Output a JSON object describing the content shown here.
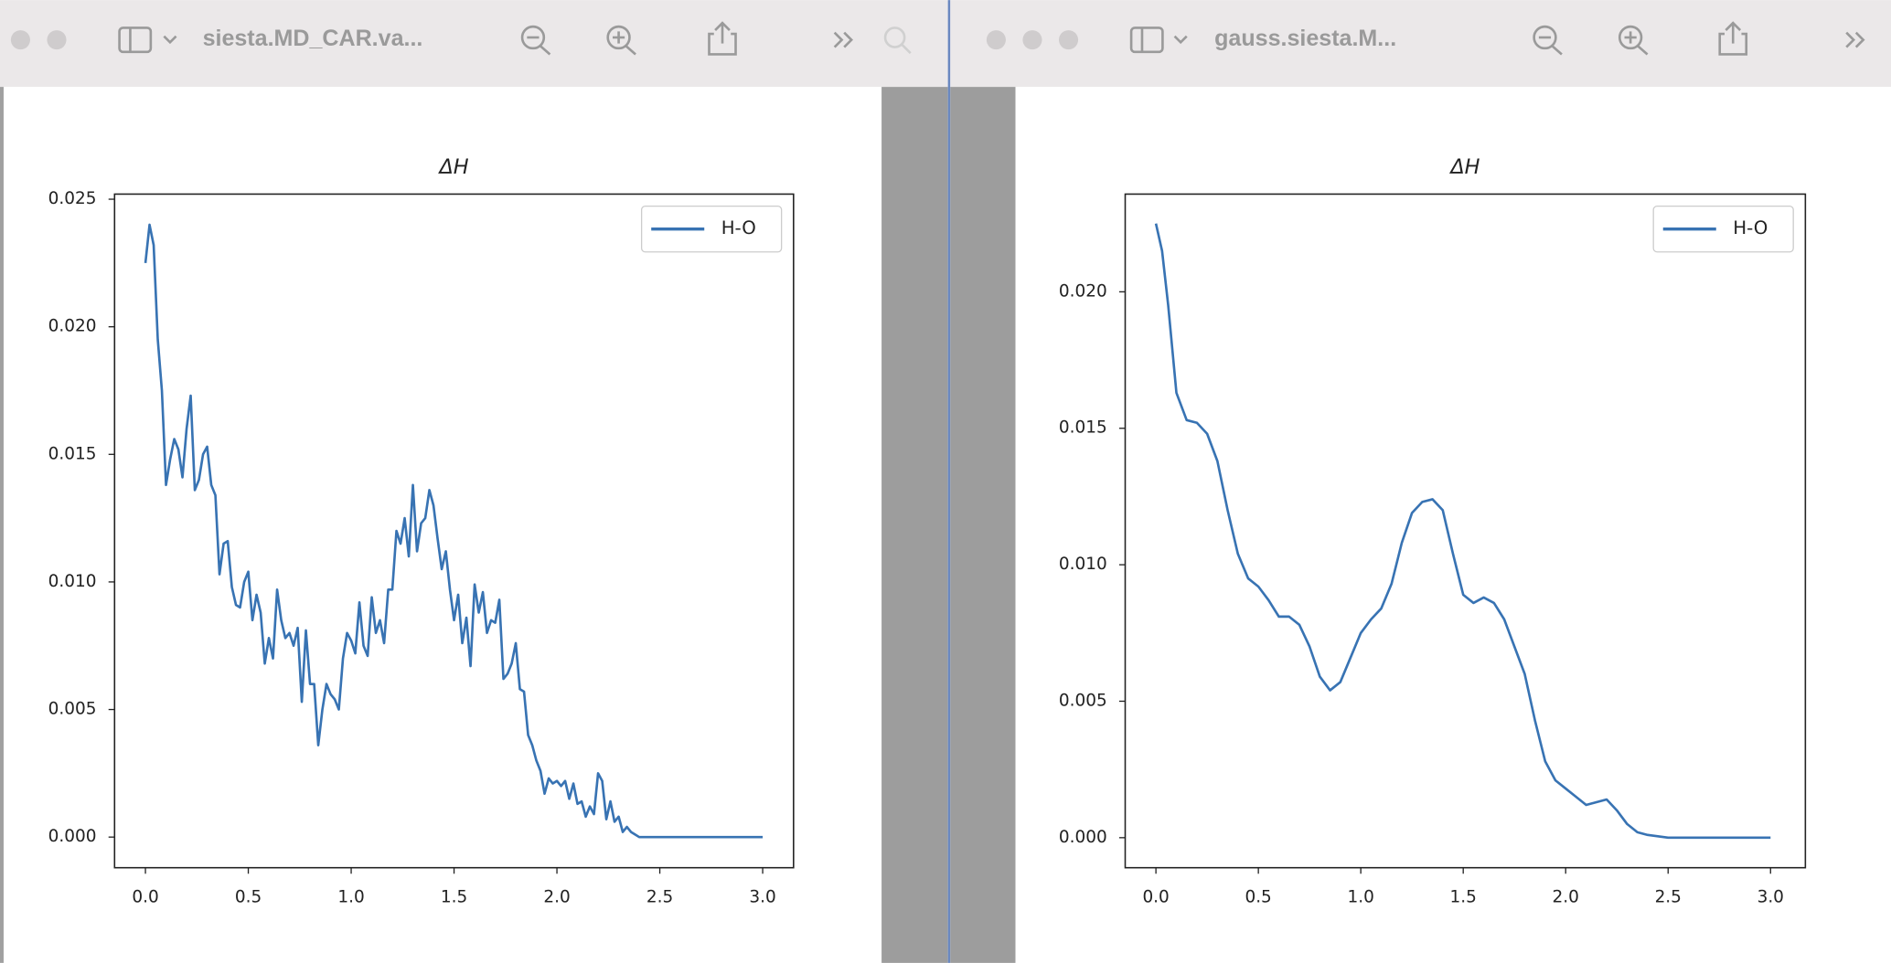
{
  "windows": [
    {
      "title": "siesta.MD_CAR.va..."
    },
    {
      "title": "gauss.siesta.M..."
    }
  ],
  "chart_data": [
    {
      "type": "line",
      "title": "ΔH",
      "x": [
        0.0,
        0.02,
        0.04,
        0.06,
        0.08,
        0.1,
        0.12,
        0.14,
        0.16,
        0.18,
        0.2,
        0.22,
        0.24,
        0.26,
        0.28,
        0.3,
        0.32,
        0.34,
        0.36,
        0.38,
        0.4,
        0.42,
        0.44,
        0.46,
        0.48,
        0.5,
        0.52,
        0.54,
        0.56,
        0.58,
        0.6,
        0.62,
        0.64,
        0.66,
        0.68,
        0.7,
        0.72,
        0.74,
        0.76,
        0.78,
        0.8,
        0.82,
        0.84,
        0.86,
        0.88,
        0.9,
        0.92,
        0.94,
        0.96,
        0.98,
        1.0,
        1.02,
        1.04,
        1.06,
        1.08,
        1.1,
        1.12,
        1.14,
        1.16,
        1.18,
        1.2,
        1.22,
        1.24,
        1.26,
        1.28,
        1.3,
        1.32,
        1.34,
        1.36,
        1.38,
        1.4,
        1.42,
        1.44,
        1.46,
        1.48,
        1.5,
        1.52,
        1.54,
        1.56,
        1.58,
        1.6,
        1.62,
        1.64,
        1.66,
        1.68,
        1.7,
        1.72,
        1.74,
        1.76,
        1.78,
        1.8,
        1.82,
        1.84,
        1.86,
        1.88,
        1.9,
        1.92,
        1.94,
        1.96,
        1.98,
        2.0,
        2.02,
        2.04,
        2.06,
        2.08,
        2.1,
        2.12,
        2.14,
        2.16,
        2.18,
        2.2,
        2.22,
        2.24,
        2.26,
        2.28,
        2.3,
        2.32,
        2.34,
        2.36,
        2.38,
        2.4,
        2.5,
        3.0
      ],
      "series": [
        {
          "name": "H-O",
          "color": "#3873b3",
          "values": [
            0.0225,
            0.024,
            0.0232,
            0.0195,
            0.0175,
            0.0138,
            0.0148,
            0.0156,
            0.0152,
            0.0141,
            0.016,
            0.0173,
            0.0136,
            0.014,
            0.015,
            0.0153,
            0.0138,
            0.0134,
            0.0103,
            0.0115,
            0.0116,
            0.0098,
            0.0091,
            0.009,
            0.01,
            0.0104,
            0.0085,
            0.0095,
            0.0088,
            0.0068,
            0.0078,
            0.007,
            0.0097,
            0.0085,
            0.0078,
            0.008,
            0.0075,
            0.0082,
            0.0053,
            0.0081,
            0.006,
            0.006,
            0.0036,
            0.005,
            0.006,
            0.0056,
            0.0054,
            0.005,
            0.007,
            0.008,
            0.0077,
            0.0072,
            0.0092,
            0.0075,
            0.0071,
            0.0094,
            0.008,
            0.0085,
            0.0076,
            0.0097,
            0.0097,
            0.012,
            0.0115,
            0.0125,
            0.011,
            0.0138,
            0.0112,
            0.0123,
            0.0125,
            0.0136,
            0.013,
            0.0117,
            0.0105,
            0.0112,
            0.0097,
            0.0085,
            0.0095,
            0.0076,
            0.0086,
            0.0067,
            0.0099,
            0.0088,
            0.0096,
            0.008,
            0.0085,
            0.0084,
            0.0093,
            0.0062,
            0.0064,
            0.0068,
            0.0076,
            0.0058,
            0.0057,
            0.004,
            0.0036,
            0.003,
            0.0026,
            0.0017,
            0.0023,
            0.0021,
            0.0022,
            0.002,
            0.0022,
            0.0015,
            0.0021,
            0.0013,
            0.0014,
            0.0008,
            0.0012,
            0.0009,
            0.0025,
            0.0022,
            0.0007,
            0.0014,
            0.0006,
            0.0008,
            0.0002,
            0.0004,
            0.0002,
            0.0001,
            0.0,
            0.0,
            0.0
          ]
        }
      ],
      "xlim": [
        -0.15,
        3.15
      ],
      "ylim": [
        -0.0012,
        0.0252
      ],
      "xticks": [
        {
          "value": 0,
          "label": "0.0"
        },
        {
          "value": 0.5,
          "label": "0.5"
        },
        {
          "value": 1,
          "label": "1.0"
        },
        {
          "value": 1.5,
          "label": "1.5"
        },
        {
          "value": 2,
          "label": "2.0"
        },
        {
          "value": 2.5,
          "label": "2.5"
        },
        {
          "value": 3,
          "label": "3.0"
        }
      ],
      "yticks": [
        {
          "value": 0,
          "label": "0.000"
        },
        {
          "value": 0.005,
          "label": "0.005"
        },
        {
          "value": 0.01,
          "label": "0.010"
        },
        {
          "value": 0.015,
          "label": "0.015"
        },
        {
          "value": 0.02,
          "label": "0.020"
        },
        {
          "value": 0.025,
          "label": "0.025"
        }
      ],
      "legend": "upper right"
    },
    {
      "type": "line",
      "title": "ΔH",
      "x": [
        0.0,
        0.03,
        0.06,
        0.1,
        0.15,
        0.2,
        0.25,
        0.3,
        0.35,
        0.4,
        0.45,
        0.5,
        0.55,
        0.6,
        0.65,
        0.7,
        0.75,
        0.8,
        0.85,
        0.9,
        0.95,
        1.0,
        1.05,
        1.1,
        1.15,
        1.2,
        1.25,
        1.3,
        1.35,
        1.4,
        1.45,
        1.5,
        1.55,
        1.6,
        1.65,
        1.7,
        1.75,
        1.8,
        1.85,
        1.9,
        1.95,
        2.0,
        2.05,
        2.1,
        2.15,
        2.2,
        2.25,
        2.3,
        2.35,
        2.4,
        2.5,
        3.0
      ],
      "series": [
        {
          "name": "H-O",
          "color": "#3873b3",
          "values": [
            0.0225,
            0.0215,
            0.0195,
            0.0163,
            0.0153,
            0.0152,
            0.0148,
            0.0138,
            0.012,
            0.0104,
            0.0095,
            0.0092,
            0.0087,
            0.0081,
            0.0081,
            0.0078,
            0.007,
            0.0059,
            0.0054,
            0.0057,
            0.0066,
            0.0075,
            0.008,
            0.0084,
            0.0093,
            0.0108,
            0.0119,
            0.0123,
            0.0124,
            0.012,
            0.0104,
            0.0089,
            0.0086,
            0.0088,
            0.0086,
            0.008,
            0.007,
            0.006,
            0.0043,
            0.0028,
            0.0021,
            0.0018,
            0.0015,
            0.0012,
            0.0013,
            0.0014,
            0.001,
            0.0005,
            0.0002,
            0.0001,
            0.0,
            0.0
          ]
        }
      ],
      "xlim": [
        -0.15,
        3.17
      ],
      "ylim": [
        -0.0011,
        0.02358
      ],
      "xticks": [
        {
          "value": 0,
          "label": "0.0"
        },
        {
          "value": 0.5,
          "label": "0.5"
        },
        {
          "value": 1,
          "label": "1.0"
        },
        {
          "value": 1.5,
          "label": "1.5"
        },
        {
          "value": 2,
          "label": "2.0"
        },
        {
          "value": 2.5,
          "label": "2.5"
        },
        {
          "value": 3,
          "label": "3.0"
        }
      ],
      "yticks": [
        {
          "value": 0,
          "label": "0.000"
        },
        {
          "value": 0.005,
          "label": "0.005"
        },
        {
          "value": 0.01,
          "label": "0.010"
        },
        {
          "value": 0.015,
          "label": "0.015"
        },
        {
          "value": 0.02,
          "label": "0.020"
        }
      ],
      "legend": "upper right"
    }
  ]
}
